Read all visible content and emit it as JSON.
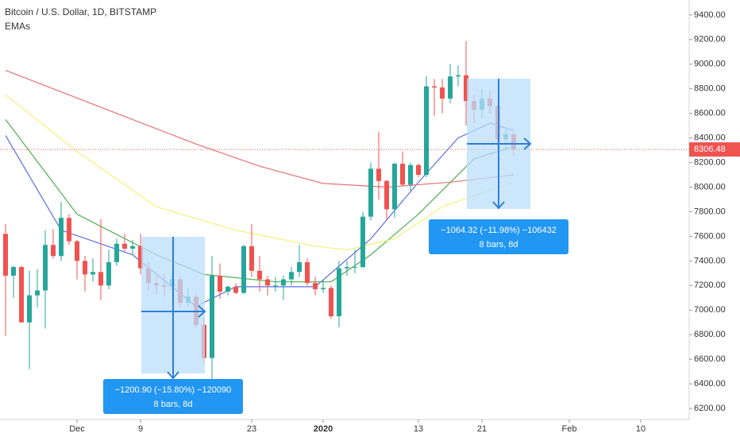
{
  "chart_data": {
    "type": "candlestick",
    "title": "Bitcoin / U.S. Dollar, 1D, BITSTAMP",
    "subtitle": "EMAs",
    "up_color": "#26a69a",
    "down_color": "#ef5350",
    "x": [
      0,
      1,
      2,
      3,
      4,
      5,
      6,
      7,
      8,
      9,
      10,
      11,
      12,
      13,
      14,
      15,
      16,
      17,
      18,
      19,
      20,
      21,
      22,
      23,
      24,
      25,
      26,
      27,
      28,
      29,
      30,
      31,
      32,
      33,
      34,
      35,
      36,
      37,
      38,
      39,
      40,
      41,
      42,
      43,
      44,
      45,
      46,
      47,
      48,
      49,
      50,
      51,
      52,
      53,
      54,
      55,
      56,
      57,
      58,
      59,
      60,
      61,
      62,
      63,
      64
    ],
    "open": [
      7620,
      7280,
      7350,
      6900,
      7120,
      7160,
      7530,
      7440,
      7750,
      7560,
      7400,
      7290,
      7310,
      7200,
      7390,
      7540,
      7500,
      7520,
      7340,
      7220,
      7200,
      7190,
      7250,
      7060,
      7110,
      6880,
      6610,
      7280,
      7150,
      7190,
      7140,
      7520,
      7320,
      7250,
      7200,
      7200,
      7250,
      7310,
      7390,
      7220,
      7170,
      7180,
      6950,
      7340,
      7350,
      7350,
      7760,
      8150,
      8050,
      7820,
      8190,
      8020,
      8180,
      8100,
      8820,
      8810,
      8720,
      8900,
      8910,
      8700,
      8630,
      8720,
      8660,
      8390,
      8430
    ],
    "high": [
      7700,
      7360,
      7360,
      7320,
      7330,
      7650,
      7660,
      7880,
      7780,
      7570,
      7440,
      7420,
      7740,
      7490,
      7580,
      7620,
      7570,
      7620,
      7390,
      7270,
      7290,
      7310,
      7280,
      7180,
      7130,
      6940,
      7440,
      7380,
      7200,
      7220,
      7530,
      7700,
      7440,
      7280,
      7270,
      7280,
      7350,
      7530,
      7420,
      7270,
      7250,
      7200,
      7400,
      7400,
      7490,
      7800,
      8200,
      8450,
      8060,
      8200,
      8290,
      8200,
      8190,
      8900,
      8880,
      8880,
      9000,
      8990,
      9190,
      8750,
      8800,
      8790,
      8680,
      8470,
      8450
    ],
    "low": [
      6790,
      7100,
      6900,
      6520,
      7020,
      6850,
      7420,
      7400,
      7530,
      7250,
      7150,
      7230,
      7080,
      7170,
      7360,
      7480,
      7450,
      7290,
      7160,
      7130,
      7110,
      7160,
      7020,
      7030,
      6860,
      6560,
      6430,
      7090,
      7120,
      7130,
      7130,
      7270,
      7150,
      7120,
      7150,
      7080,
      7200,
      7270,
      7200,
      7120,
      7140,
      6930,
      6860,
      7280,
      7300,
      7340,
      7730,
      7900,
      7730,
      7750,
      8010,
      7970,
      8080,
      8080,
      8580,
      8600,
      8680,
      8820,
      8500,
      8520,
      8560,
      8600,
      8290,
      8300,
      8250
    ],
    "close": [
      7280,
      7350,
      6900,
      7120,
      7160,
      7530,
      7440,
      7750,
      7560,
      7400,
      7290,
      7310,
      7200,
      7390,
      7540,
      7500,
      7520,
      7340,
      7220,
      7200,
      7190,
      7250,
      7060,
      7110,
      6880,
      6610,
      7280,
      7150,
      7190,
      7140,
      7520,
      7320,
      7250,
      7200,
      7200,
      7250,
      7310,
      7390,
      7220,
      7170,
      7180,
      6950,
      7340,
      7350,
      7350,
      7760,
      8150,
      8050,
      7820,
      8190,
      8020,
      8180,
      8100,
      8820,
      8810,
      8720,
      8900,
      8910,
      8700,
      8630,
      8720,
      8660,
      8390,
      8430,
      8306.48
    ],
    "lines": [
      {
        "color": "#5b6ee1",
        "x": [
          0,
          7,
          16,
          24,
          29,
          39,
          46,
          52,
          57,
          61,
          64
        ],
        "values": [
          8420,
          7650,
          7450,
          7030,
          7190,
          7190,
          7580,
          8040,
          8400,
          8520,
          8460
        ]
      },
      {
        "color": "#4caf50",
        "x": [
          0,
          9,
          19,
          25,
          34,
          41,
          46,
          52,
          59,
          64
        ],
        "values": [
          8550,
          7780,
          7450,
          7290,
          7230,
          7230,
          7450,
          7780,
          8230,
          8330
        ]
      },
      {
        "color": "#f5f07a",
        "x": [
          0,
          9,
          19,
          29,
          39,
          43,
          49,
          55,
          64
        ],
        "values": [
          8750,
          8290,
          7840,
          7650,
          7520,
          7490,
          7580,
          7840,
          8040
        ]
      },
      {
        "color": "#e57373",
        "x": [
          0,
          8,
          16,
          24,
          32,
          40,
          48,
          56,
          64
        ],
        "values": [
          8950,
          8750,
          8550,
          8350,
          8170,
          8030,
          8000,
          8040,
          8100
        ]
      }
    ],
    "last_price": {
      "value": 8306.48,
      "label": "8306.48"
    },
    "annotations": [
      {
        "text": "−1200.90 (−15.80%) −120090",
        "subtext": "8 bars, 8d"
      },
      {
        "text": "−1064.32 (−11.98%) −106432",
        "subtext": "8 bars, 8d"
      }
    ],
    "xlim": [
      -0.7,
      86.1
    ],
    "ylim": [
      6110,
      9522
    ],
    "xticks": [
      {
        "value": 9,
        "label": "Dec"
      },
      {
        "value": 17,
        "label": "9"
      },
      {
        "value": 31,
        "label": "23"
      },
      {
        "value": 40,
        "label": "2020"
      },
      {
        "value": 52,
        "label": "13"
      },
      {
        "value": 60,
        "label": "21"
      },
      {
        "value": 71,
        "label": "Feb"
      },
      {
        "value": 80,
        "label": "10"
      }
    ],
    "yticks": [
      {
        "value": 6200,
        "label": "6200.00"
      },
      {
        "value": 6400,
        "label": "6400.00"
      },
      {
        "value": 6600,
        "label": "6600.00"
      },
      {
        "value": 6800,
        "label": "6800.00"
      },
      {
        "value": 7000,
        "label": "7000.00"
      },
      {
        "value": 7200,
        "label": "7200.00"
      },
      {
        "value": 7400,
        "label": "7400.00"
      },
      {
        "value": 7600,
        "label": "7600.00"
      },
      {
        "value": 7800,
        "label": "7800.00"
      },
      {
        "value": 8000,
        "label": "8000.00"
      },
      {
        "value": 8200,
        "label": "8200.00"
      },
      {
        "value": 8400,
        "label": "8400.00"
      },
      {
        "value": 8600,
        "label": "8600.00"
      },
      {
        "value": 8800,
        "label": "8800.00"
      },
      {
        "value": 9000,
        "label": "9000.00"
      },
      {
        "value": 9200,
        "label": "9200.00"
      },
      {
        "value": 9400,
        "label": "9400.00"
      }
    ]
  }
}
